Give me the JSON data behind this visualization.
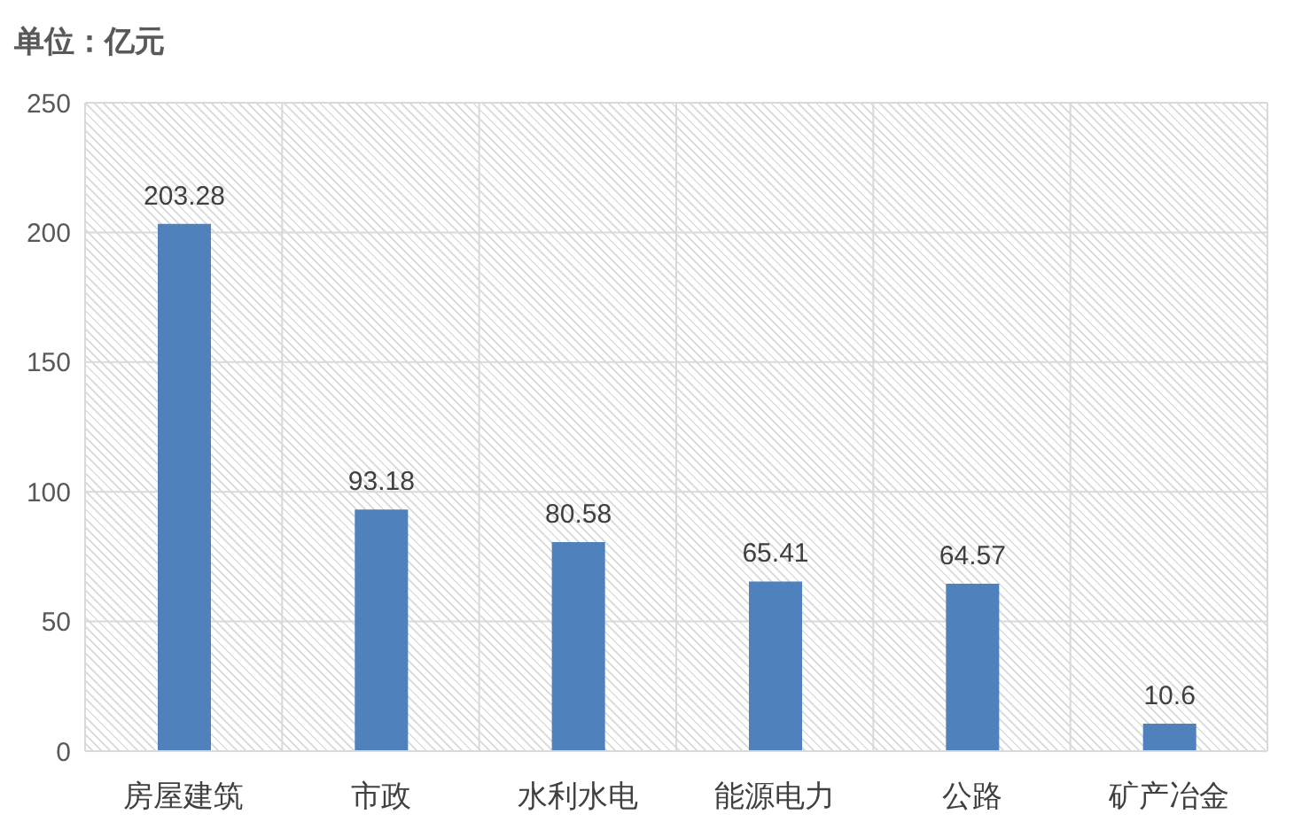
{
  "chart_data": {
    "type": "bar",
    "ylabel": "单位：亿元",
    "categories": [
      "房屋建筑",
      "市政",
      "水利水电",
      "能源电力",
      "公路",
      "矿产冶金"
    ],
    "values": [
      203.28,
      93.18,
      80.58,
      65.41,
      64.57,
      10.6
    ],
    "color": "#4f81bd",
    "ylim": [
      0,
      250
    ],
    "yticks": [
      0,
      50,
      100,
      150,
      200,
      250
    ],
    "grid": true,
    "data_labels": true
  }
}
